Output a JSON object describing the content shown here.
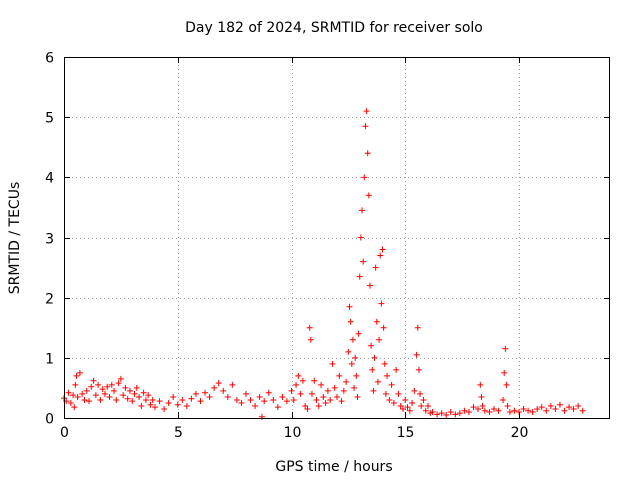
{
  "chart_data": {
    "type": "scatter",
    "title": "Day 182 of 2024, SRMTID for receiver solo",
    "xlabel": "GPS time / hours",
    "ylabel": "SRMTID / TECUs",
    "xlim": [
      0,
      24
    ],
    "ylim": [
      0,
      6
    ],
    "xticks": [
      0,
      5,
      10,
      15,
      20
    ],
    "yticks": [
      0,
      1,
      2,
      3,
      4,
      5,
      6
    ],
    "grid": true,
    "marker": "+",
    "color": "#ff0000",
    "series": [
      {
        "name": "SRMTID",
        "points": [
          [
            0.0,
            0.33
          ],
          [
            0.1,
            0.28
          ],
          [
            0.2,
            0.42
          ],
          [
            0.3,
            0.25
          ],
          [
            0.4,
            0.38
          ],
          [
            0.45,
            0.18
          ],
          [
            0.5,
            0.55
          ],
          [
            0.55,
            0.7
          ],
          [
            0.6,
            0.35
          ],
          [
            0.7,
            0.75
          ],
          [
            0.8,
            0.4
          ],
          [
            0.9,
            0.3
          ],
          [
            1.0,
            0.45
          ],
          [
            1.1,
            0.28
          ],
          [
            1.2,
            0.52
          ],
          [
            1.3,
            0.62
          ],
          [
            1.4,
            0.38
          ],
          [
            1.5,
            0.55
          ],
          [
            1.6,
            0.3
          ],
          [
            1.7,
            0.48
          ],
          [
            1.8,
            0.4
          ],
          [
            1.9,
            0.52
          ],
          [
            2.0,
            0.35
          ],
          [
            2.1,
            0.55
          ],
          [
            2.2,
            0.45
          ],
          [
            2.3,
            0.3
          ],
          [
            2.4,
            0.58
          ],
          [
            2.5,
            0.65
          ],
          [
            2.6,
            0.38
          ],
          [
            2.7,
            0.5
          ],
          [
            2.8,
            0.32
          ],
          [
            2.9,
            0.45
          ],
          [
            3.0,
            0.28
          ],
          [
            3.1,
            0.4
          ],
          [
            3.2,
            0.5
          ],
          [
            3.3,
            0.35
          ],
          [
            3.4,
            0.2
          ],
          [
            3.5,
            0.42
          ],
          [
            3.6,
            0.3
          ],
          [
            3.7,
            0.38
          ],
          [
            3.8,
            0.22
          ],
          [
            3.9,
            0.3
          ],
          [
            4.0,
            0.18
          ],
          [
            4.2,
            0.28
          ],
          [
            4.4,
            0.15
          ],
          [
            4.6,
            0.25
          ],
          [
            4.8,
            0.35
          ],
          [
            5.0,
            0.22
          ],
          [
            5.2,
            0.3
          ],
          [
            5.4,
            0.2
          ],
          [
            5.6,
            0.32
          ],
          [
            5.8,
            0.4
          ],
          [
            6.0,
            0.28
          ],
          [
            6.2,
            0.42
          ],
          [
            6.4,
            0.35
          ],
          [
            6.6,
            0.5
          ],
          [
            6.8,
            0.58
          ],
          [
            7.0,
            0.45
          ],
          [
            7.2,
            0.35
          ],
          [
            7.4,
            0.55
          ],
          [
            7.6,
            0.3
          ],
          [
            7.8,
            0.25
          ],
          [
            8.0,
            0.4
          ],
          [
            8.2,
            0.3
          ],
          [
            8.4,
            0.2
          ],
          [
            8.6,
            0.35
          ],
          [
            8.7,
            0.02
          ],
          [
            8.8,
            0.28
          ],
          [
            9.0,
            0.42
          ],
          [
            9.2,
            0.3
          ],
          [
            9.4,
            0.18
          ],
          [
            9.6,
            0.35
          ],
          [
            9.8,
            0.28
          ],
          [
            10.0,
            0.45
          ],
          [
            10.1,
            0.3
          ],
          [
            10.2,
            0.55
          ],
          [
            10.3,
            0.7
          ],
          [
            10.4,
            0.4
          ],
          [
            10.5,
            0.62
          ],
          [
            10.6,
            0.2
          ],
          [
            10.7,
            0.15
          ],
          [
            10.8,
            1.5
          ],
          [
            10.85,
            1.3
          ],
          [
            10.9,
            0.4
          ],
          [
            11.0,
            0.62
          ],
          [
            11.1,
            0.3
          ],
          [
            11.2,
            0.2
          ],
          [
            11.3,
            0.55
          ],
          [
            11.4,
            0.35
          ],
          [
            11.5,
            0.25
          ],
          [
            11.6,
            0.45
          ],
          [
            11.7,
            0.3
          ],
          [
            11.8,
            0.9
          ],
          [
            11.9,
            0.5
          ],
          [
            12.0,
            0.35
          ],
          [
            12.1,
            0.7
          ],
          [
            12.2,
            0.28
          ],
          [
            12.3,
            0.45
          ],
          [
            12.4,
            0.6
          ],
          [
            12.5,
            1.1
          ],
          [
            12.55,
            1.85
          ],
          [
            12.6,
            1.6
          ],
          [
            12.65,
            0.9
          ],
          [
            12.7,
            1.3
          ],
          [
            12.75,
            0.5
          ],
          [
            12.8,
            1.0
          ],
          [
            12.85,
            0.7
          ],
          [
            12.9,
            0.35
          ],
          [
            12.95,
            1.4
          ],
          [
            13.0,
            2.35
          ],
          [
            13.05,
            3.0
          ],
          [
            13.1,
            3.45
          ],
          [
            13.15,
            2.6
          ],
          [
            13.2,
            4.0
          ],
          [
            13.25,
            4.85
          ],
          [
            13.3,
            5.1
          ],
          [
            13.35,
            4.4
          ],
          [
            13.4,
            3.7
          ],
          [
            13.45,
            2.2
          ],
          [
            13.5,
            1.2
          ],
          [
            13.55,
            0.8
          ],
          [
            13.6,
            0.45
          ],
          [
            13.65,
            1.0
          ],
          [
            13.7,
            2.5
          ],
          [
            13.75,
            1.6
          ],
          [
            13.8,
            0.6
          ],
          [
            13.85,
            1.3
          ],
          [
            13.9,
            2.7
          ],
          [
            13.95,
            1.9
          ],
          [
            14.0,
            2.8
          ],
          [
            14.05,
            1.5
          ],
          [
            14.1,
            0.9
          ],
          [
            14.15,
            0.4
          ],
          [
            14.2,
            0.7
          ],
          [
            14.3,
            0.3
          ],
          [
            14.4,
            0.55
          ],
          [
            14.5,
            0.25
          ],
          [
            14.6,
            0.8
          ],
          [
            14.7,
            0.4
          ],
          [
            14.8,
            0.2
          ],
          [
            14.9,
            0.15
          ],
          [
            15.0,
            0.3
          ],
          [
            15.1,
            0.18
          ],
          [
            15.2,
            0.12
          ],
          [
            15.3,
            0.25
          ],
          [
            15.4,
            0.45
          ],
          [
            15.5,
            1.05
          ],
          [
            15.55,
            1.5
          ],
          [
            15.6,
            0.8
          ],
          [
            15.65,
            0.4
          ],
          [
            15.7,
            0.2
          ],
          [
            15.8,
            0.3
          ],
          [
            15.9,
            0.12
          ],
          [
            16.0,
            0.2
          ],
          [
            16.1,
            0.08
          ],
          [
            16.2,
            0.1
          ],
          [
            16.4,
            0.06
          ],
          [
            16.6,
            0.08
          ],
          [
            16.8,
            0.05
          ],
          [
            17.0,
            0.1
          ],
          [
            17.2,
            0.06
          ],
          [
            17.4,
            0.08
          ],
          [
            17.6,
            0.12
          ],
          [
            17.8,
            0.1
          ],
          [
            18.0,
            0.18
          ],
          [
            18.2,
            0.15
          ],
          [
            18.3,
            0.55
          ],
          [
            18.35,
            0.35
          ],
          [
            18.4,
            0.2
          ],
          [
            18.5,
            0.12
          ],
          [
            18.7,
            0.1
          ],
          [
            18.9,
            0.15
          ],
          [
            19.1,
            0.12
          ],
          [
            19.3,
            0.3
          ],
          [
            19.35,
            0.75
          ],
          [
            19.4,
            1.15
          ],
          [
            19.45,
            0.55
          ],
          [
            19.5,
            0.2
          ],
          [
            19.6,
            0.1
          ],
          [
            19.8,
            0.12
          ],
          [
            20.0,
            0.1
          ],
          [
            20.2,
            0.15
          ],
          [
            20.4,
            0.12
          ],
          [
            20.6,
            0.1
          ],
          [
            20.8,
            0.15
          ],
          [
            21.0,
            0.18
          ],
          [
            21.2,
            0.12
          ],
          [
            21.4,
            0.2
          ],
          [
            21.6,
            0.15
          ],
          [
            21.8,
            0.22
          ],
          [
            22.0,
            0.12
          ],
          [
            22.2,
            0.18
          ],
          [
            22.4,
            0.15
          ],
          [
            22.6,
            0.2
          ],
          [
            22.8,
            0.12
          ]
        ]
      }
    ]
  }
}
